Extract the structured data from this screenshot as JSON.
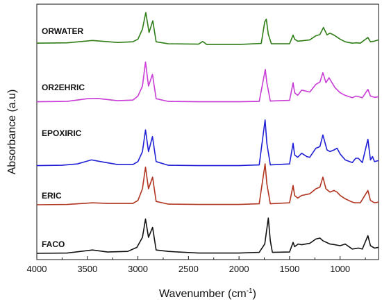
{
  "chart_data": {
    "type": "line",
    "xlabel": "Wavenumber (cm",
    "xlabel_sup": "-1",
    "xlabel_tail": ")",
    "ylabel": "Absorbance (a.u)",
    "xlim": [
      4000,
      620
    ],
    "x_reversed": true,
    "x_ticks": [
      4000,
      3500,
      3000,
      2500,
      2000,
      1500,
      1000
    ],
    "tick_labels": [
      "4000",
      "3500",
      "3000",
      "2500",
      "2000",
      "1500",
      "1000"
    ],
    "y_ticks_shown": false,
    "grid": false,
    "legend": "inline labels",
    "series": [
      {
        "name": "ORWATER",
        "color": "#2e7d16",
        "offset": 4,
        "points": [
          [
            4000,
            0.08
          ],
          [
            3700,
            0.09
          ],
          [
            3450,
            0.16
          ],
          [
            3200,
            0.1
          ],
          [
            3050,
            0.12
          ],
          [
            3000,
            0.2
          ],
          [
            2955,
            0.5
          ],
          [
            2922,
            1.0
          ],
          [
            2890,
            0.4
          ],
          [
            2853,
            0.75
          ],
          [
            2820,
            0.12
          ],
          [
            2700,
            0.06
          ],
          [
            2400,
            0.05
          ],
          [
            2360,
            0.13
          ],
          [
            2340,
            0.09
          ],
          [
            2320,
            0.04
          ],
          [
            2000,
            0.04
          ],
          [
            1780,
            0.07
          ],
          [
            1745,
            0.72
          ],
          [
            1730,
            0.8
          ],
          [
            1710,
            0.35
          ],
          [
            1680,
            0.06
          ],
          [
            1500,
            0.06
          ],
          [
            1465,
            0.32
          ],
          [
            1450,
            0.2
          ],
          [
            1420,
            0.14
          ],
          [
            1380,
            0.15
          ],
          [
            1300,
            0.18
          ],
          [
            1240,
            0.3
          ],
          [
            1200,
            0.34
          ],
          [
            1165,
            0.55
          ],
          [
            1130,
            0.33
          ],
          [
            1100,
            0.38
          ],
          [
            1060,
            0.32
          ],
          [
            1000,
            0.2
          ],
          [
            950,
            0.12
          ],
          [
            880,
            0.08
          ],
          [
            840,
            0.09
          ],
          [
            800,
            0.08
          ],
          [
            725,
            0.25
          ],
          [
            700,
            0.12
          ],
          [
            660,
            0.14
          ],
          [
            620,
            0.18
          ]
        ]
      },
      {
        "name": "OR2EHRIC",
        "color": "#c93bd6",
        "offset": 3,
        "points": [
          [
            4000,
            0.03
          ],
          [
            3700,
            0.04
          ],
          [
            3500,
            0.12
          ],
          [
            3400,
            0.13
          ],
          [
            3200,
            0.06
          ],
          [
            3050,
            0.08
          ],
          [
            3000,
            0.2
          ],
          [
            2955,
            0.5
          ],
          [
            2925,
            1.22
          ],
          [
            2895,
            0.5
          ],
          [
            2856,
            0.85
          ],
          [
            2820,
            0.12
          ],
          [
            2700,
            0.04
          ],
          [
            2400,
            0.03
          ],
          [
            2000,
            0.03
          ],
          [
            1800,
            0.04
          ],
          [
            1740,
            1.0
          ],
          [
            1725,
            0.6
          ],
          [
            1690,
            0.05
          ],
          [
            1500,
            0.07
          ],
          [
            1465,
            0.6
          ],
          [
            1450,
            0.3
          ],
          [
            1420,
            0.22
          ],
          [
            1380,
            0.38
          ],
          [
            1300,
            0.32
          ],
          [
            1240,
            0.55
          ],
          [
            1200,
            0.62
          ],
          [
            1170,
            0.9
          ],
          [
            1140,
            0.6
          ],
          [
            1110,
            0.75
          ],
          [
            1080,
            0.6
          ],
          [
            1050,
            0.45
          ],
          [
            1000,
            0.3
          ],
          [
            950,
            0.22
          ],
          [
            880,
            0.15
          ],
          [
            840,
            0.2
          ],
          [
            780,
            0.15
          ],
          [
            725,
            0.4
          ],
          [
            700,
            0.2
          ],
          [
            660,
            0.16
          ],
          [
            620,
            0.18
          ]
        ]
      },
      {
        "name": "EPOXIRIC",
        "color": "#1f1fd6",
        "offset": 2,
        "points": [
          [
            4000,
            0.03
          ],
          [
            3750,
            0.04
          ],
          [
            3600,
            0.08
          ],
          [
            3460,
            0.2
          ],
          [
            3350,
            0.14
          ],
          [
            3200,
            0.06
          ],
          [
            3050,
            0.06
          ],
          [
            3000,
            0.15
          ],
          [
            2955,
            0.45
          ],
          [
            2925,
            1.1
          ],
          [
            2895,
            0.45
          ],
          [
            2856,
            0.9
          ],
          [
            2820,
            0.15
          ],
          [
            2700,
            0.04
          ],
          [
            2400,
            0.03
          ],
          [
            2000,
            0.03
          ],
          [
            1800,
            0.05
          ],
          [
            1742,
            1.4
          ],
          [
            1725,
            0.7
          ],
          [
            1690,
            0.05
          ],
          [
            1500,
            0.08
          ],
          [
            1465,
            0.7
          ],
          [
            1450,
            0.35
          ],
          [
            1420,
            0.28
          ],
          [
            1380,
            0.4
          ],
          [
            1330,
            0.3
          ],
          [
            1300,
            0.28
          ],
          [
            1240,
            0.55
          ],
          [
            1200,
            0.6
          ],
          [
            1170,
            0.95
          ],
          [
            1130,
            0.5
          ],
          [
            1100,
            0.45
          ],
          [
            1060,
            0.5
          ],
          [
            1030,
            0.55
          ],
          [
            1000,
            0.38
          ],
          [
            950,
            0.2
          ],
          [
            880,
            0.12
          ],
          [
            845,
            0.25
          ],
          [
            820,
            0.25
          ],
          [
            780,
            0.12
          ],
          [
            725,
            0.82
          ],
          [
            700,
            0.2
          ],
          [
            680,
            0.3
          ],
          [
            660,
            0.15
          ],
          [
            620,
            0.18
          ]
        ]
      },
      {
        "name": "ERIC",
        "color": "#b0341f",
        "offset": 1,
        "points": [
          [
            4000,
            0.02
          ],
          [
            3700,
            0.03
          ],
          [
            3450,
            0.08
          ],
          [
            3300,
            0.06
          ],
          [
            3050,
            0.06
          ],
          [
            3000,
            0.15
          ],
          [
            2955,
            0.5
          ],
          [
            2925,
            1.15
          ],
          [
            2895,
            0.5
          ],
          [
            2855,
            0.85
          ],
          [
            2820,
            0.12
          ],
          [
            2700,
            0.04
          ],
          [
            2400,
            0.03
          ],
          [
            2000,
            0.03
          ],
          [
            1800,
            0.05
          ],
          [
            1742,
            1.25
          ],
          [
            1725,
            0.65
          ],
          [
            1690,
            0.05
          ],
          [
            1500,
            0.08
          ],
          [
            1465,
            0.6
          ],
          [
            1450,
            0.3
          ],
          [
            1420,
            0.22
          ],
          [
            1380,
            0.3
          ],
          [
            1300,
            0.35
          ],
          [
            1240,
            0.5
          ],
          [
            1200,
            0.55
          ],
          [
            1170,
            0.85
          ],
          [
            1140,
            0.5
          ],
          [
            1100,
            0.4
          ],
          [
            1060,
            0.45
          ],
          [
            1030,
            0.4
          ],
          [
            1000,
            0.3
          ],
          [
            950,
            0.2
          ],
          [
            880,
            0.1
          ],
          [
            850,
            0.08
          ],
          [
            800,
            0.08
          ],
          [
            725,
            0.45
          ],
          [
            700,
            0.15
          ],
          [
            660,
            0.08
          ],
          [
            620,
            0.1
          ]
        ]
      },
      {
        "name": "FACO",
        "color": "#111111",
        "offset": 0,
        "points": [
          [
            4000,
            0.02
          ],
          [
            3700,
            0.03
          ],
          [
            3450,
            0.12
          ],
          [
            3300,
            0.06
          ],
          [
            3100,
            0.08
          ],
          [
            3010,
            0.2
          ],
          [
            2955,
            0.5
          ],
          [
            2925,
            1.05
          ],
          [
            2895,
            0.5
          ],
          [
            2855,
            0.8
          ],
          [
            2820,
            0.12
          ],
          [
            2700,
            0.08
          ],
          [
            2600,
            0.06
          ],
          [
            2400,
            0.03
          ],
          [
            2000,
            0.03
          ],
          [
            1800,
            0.05
          ],
          [
            1745,
            0.3
          ],
          [
            1710,
            1.08
          ],
          [
            1690,
            0.4
          ],
          [
            1670,
            0.05
          ],
          [
            1500,
            0.06
          ],
          [
            1465,
            0.35
          ],
          [
            1450,
            0.22
          ],
          [
            1415,
            0.3
          ],
          [
            1380,
            0.28
          ],
          [
            1300,
            0.32
          ],
          [
            1240,
            0.45
          ],
          [
            1200,
            0.48
          ],
          [
            1170,
            0.4
          ],
          [
            1100,
            0.3
          ],
          [
            1050,
            0.28
          ],
          [
            1000,
            0.25
          ],
          [
            950,
            0.3
          ],
          [
            880,
            0.15
          ],
          [
            820,
            0.18
          ],
          [
            780,
            0.15
          ],
          [
            725,
            0.55
          ],
          [
            700,
            0.25
          ],
          [
            660,
            0.18
          ],
          [
            620,
            0.2
          ]
        ]
      }
    ]
  }
}
